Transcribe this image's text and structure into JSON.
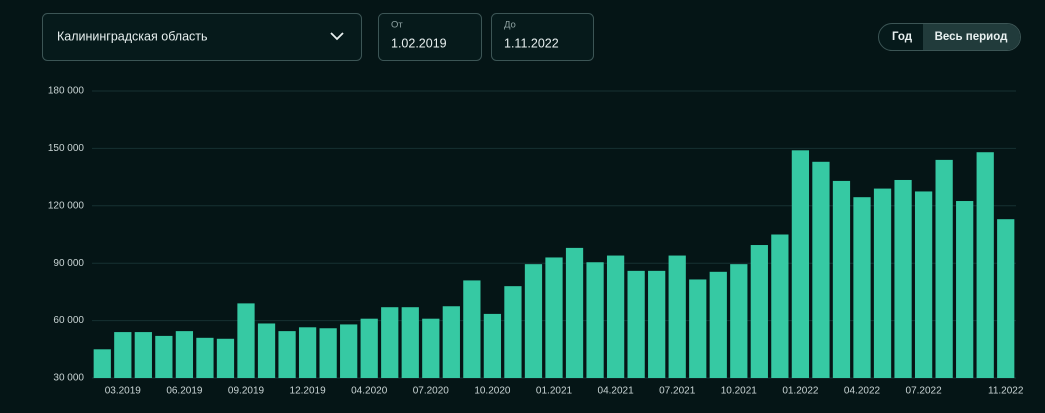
{
  "ui": {
    "region": "Калининградская область",
    "from_label": "От",
    "from_value": "1.02.2019",
    "to_label": "До",
    "to_value": "1.11.2022",
    "period_year": "Год",
    "period_all": "Весь период"
  },
  "chart_data": {
    "type": "bar",
    "color": "#36c9a3",
    "grid": true,
    "categories": [
      null,
      "03.2019",
      null,
      null,
      "06.2019",
      null,
      null,
      "09.2019",
      null,
      null,
      "12.2019",
      null,
      null,
      "04.2020",
      null,
      null,
      "07.2020",
      null,
      null,
      "10.2020",
      null,
      null,
      "01.2021",
      null,
      null,
      "04.2021",
      null,
      null,
      "07.2021",
      null,
      null,
      "10.2021",
      null,
      null,
      "01.2022",
      null,
      null,
      "04.2022",
      null,
      null,
      "07.2022",
      null,
      null,
      null,
      "11.2022"
    ],
    "values": [
      45000,
      54000,
      54000,
      52000,
      54500,
      51000,
      50500,
      69000,
      58500,
      54500,
      56500,
      56000,
      58000,
      61000,
      67000,
      67000,
      61000,
      67500,
      81000,
      63500,
      78000,
      89500,
      93000,
      98000,
      90500,
      94000,
      86000,
      86000,
      94000,
      81500,
      85500,
      89500,
      99500,
      105000,
      149000,
      143000,
      133000,
      124500,
      129000,
      133500,
      127500,
      144000,
      122500,
      148000,
      113000
    ],
    "ylim": [
      30000,
      180000
    ],
    "yticks": [
      {
        "value": 30000,
        "label": "30 000"
      },
      {
        "value": 60000,
        "label": "60 000"
      },
      {
        "value": 90000,
        "label": "90 000"
      },
      {
        "value": 120000,
        "label": "120 000"
      },
      {
        "value": 150000,
        "label": "150 000"
      },
      {
        "value": 180000,
        "label": "180 000"
      }
    ]
  }
}
